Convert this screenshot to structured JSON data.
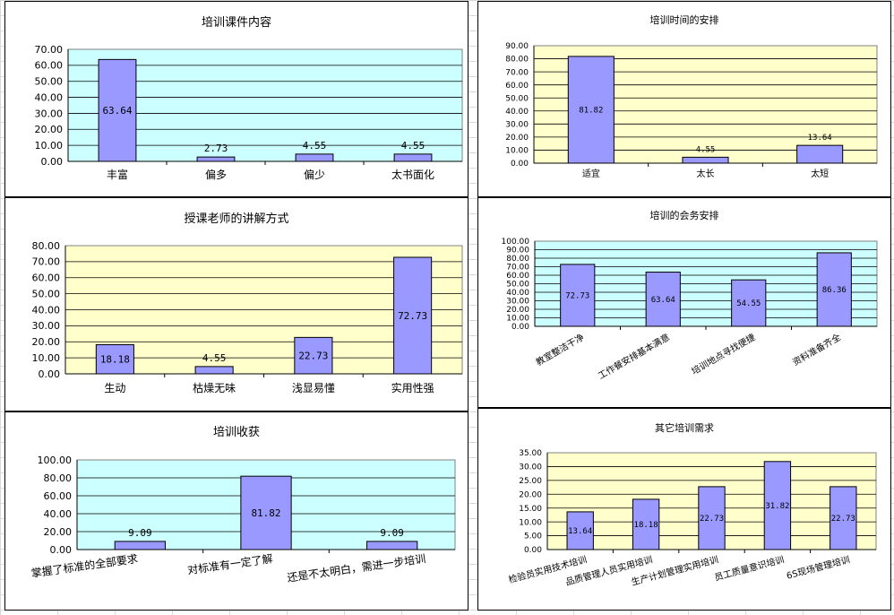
{
  "colors": {
    "bar_fill": "#9999ff",
    "bar_stroke": "#000000",
    "plot_cyan": "#ccffff",
    "plot_yellow": "#ffffcc",
    "gridline": "#000000"
  },
  "chart_data": [
    {
      "type": "bar",
      "title": "培训课件内容",
      "categories": [
        "丰富",
        "偏多",
        "偏少",
        "太书面化"
      ],
      "values": [
        63.64,
        2.73,
        4.55,
        4.55
      ],
      "value_labels": [
        "63.64",
        "2.73",
        "4.55",
        "4.55"
      ],
      "ylim": [
        0,
        70
      ],
      "yticks": [
        "0.00",
        "10.00",
        "20.00",
        "30.00",
        "40.00",
        "50.00",
        "60.00",
        "70.00"
      ],
      "plot_background": "#ccffff",
      "grid": true,
      "legend": "none"
    },
    {
      "type": "bar",
      "title": "培训时间的安排",
      "categories": [
        "适宜",
        "太长",
        "太短"
      ],
      "values": [
        81.82,
        4.55,
        13.64
      ],
      "value_labels": [
        "81.82",
        "4.55",
        "13.64"
      ],
      "ylim": [
        0,
        90
      ],
      "yticks": [
        "0.00",
        "10.00",
        "20.00",
        "30.00",
        "40.00",
        "50.00",
        "60.00",
        "70.00",
        "80.00",
        "90.00"
      ],
      "plot_background": "#ffffcc",
      "grid": true,
      "legend": "none"
    },
    {
      "type": "bar",
      "title": "授课老师的讲解方式",
      "categories": [
        "生动",
        "枯燥无味",
        "浅显易懂",
        "实用性强"
      ],
      "values": [
        18.18,
        4.55,
        22.73,
        72.73
      ],
      "value_labels": [
        "18.18",
        "4.55",
        "22.73",
        "72.73"
      ],
      "ylim": [
        0,
        80
      ],
      "yticks": [
        "0.00",
        "10.00",
        "20.00",
        "30.00",
        "40.00",
        "50.00",
        "60.00",
        "70.00",
        "80.00"
      ],
      "plot_background": "#ffffcc",
      "grid": true,
      "legend": "none"
    },
    {
      "type": "bar",
      "title": "培训的会务安排",
      "categories": [
        "教室整洁干净",
        "工作餐安排基本满意",
        "培训地点寻找便捷",
        "资料准备齐全"
      ],
      "values": [
        72.73,
        63.64,
        54.55,
        86.36
      ],
      "value_labels": [
        "72.73",
        "63.64",
        "54.55",
        "86.36"
      ],
      "ylim": [
        0,
        100
      ],
      "yticks": [
        "0.00",
        "10.00",
        "20.00",
        "30.00",
        "40.00",
        "50.00",
        "60.00",
        "70.00",
        "80.00",
        "90.00",
        "100.00"
      ],
      "plot_background": "#ccffff",
      "grid": true,
      "legend": "none"
    },
    {
      "type": "bar",
      "title": "培训收获",
      "categories": [
        "掌握了标准的全部要求",
        "对标准有一定了解",
        "还是不太明白，需进一步培训"
      ],
      "values": [
        9.09,
        81.82,
        9.09
      ],
      "value_labels": [
        "9.09",
        "81.82",
        "9.09"
      ],
      "ylim": [
        0,
        100
      ],
      "yticks": [
        "0.00",
        "20.00",
        "40.00",
        "60.00",
        "80.00",
        "100.00"
      ],
      "plot_background": "#ccffff",
      "grid": true,
      "legend": "none"
    },
    {
      "type": "bar",
      "title": "其它培训需求",
      "categories": [
        "检验员实用技术培训",
        "品质管理人员实用培训",
        "生产计划管理实用培训",
        "员工质量意识培训",
        "6S现场管理培训"
      ],
      "values": [
        13.64,
        18.18,
        22.73,
        31.82,
        22.73
      ],
      "value_labels": [
        "13.64",
        "18.18",
        "22.73",
        "31.82",
        "22.73"
      ],
      "ylim": [
        0,
        35
      ],
      "yticks": [
        "0.00",
        "5.00",
        "10.00",
        "15.00",
        "20.00",
        "25.00",
        "30.00",
        "35.00"
      ],
      "plot_background": "#ffffcc",
      "grid": true,
      "legend": "none"
    }
  ]
}
